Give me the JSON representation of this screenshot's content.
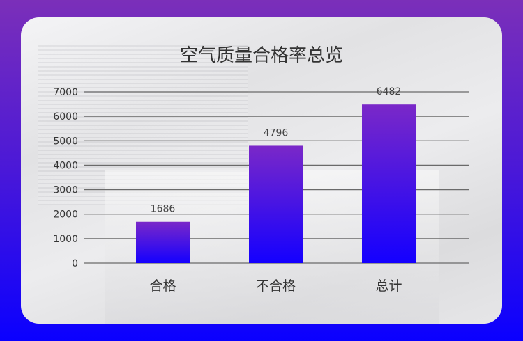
{
  "chart_data": {
    "type": "bar",
    "title": "空气质量合格率总览",
    "categories": [
      "合格",
      "不合格",
      "总计"
    ],
    "values": [
      1686,
      4796,
      6482
    ],
    "ylim": [
      0,
      7000
    ],
    "yticks": [
      0,
      1000,
      2000,
      3000,
      4000,
      5000,
      6000,
      7000
    ],
    "grid": true,
    "data_labels": true,
    "colors": {
      "bar_top": "#7a28c8",
      "bar_bottom": "#1400ff",
      "background_top": "#7b2fb9",
      "background_bottom": "#0a00ff"
    }
  }
}
